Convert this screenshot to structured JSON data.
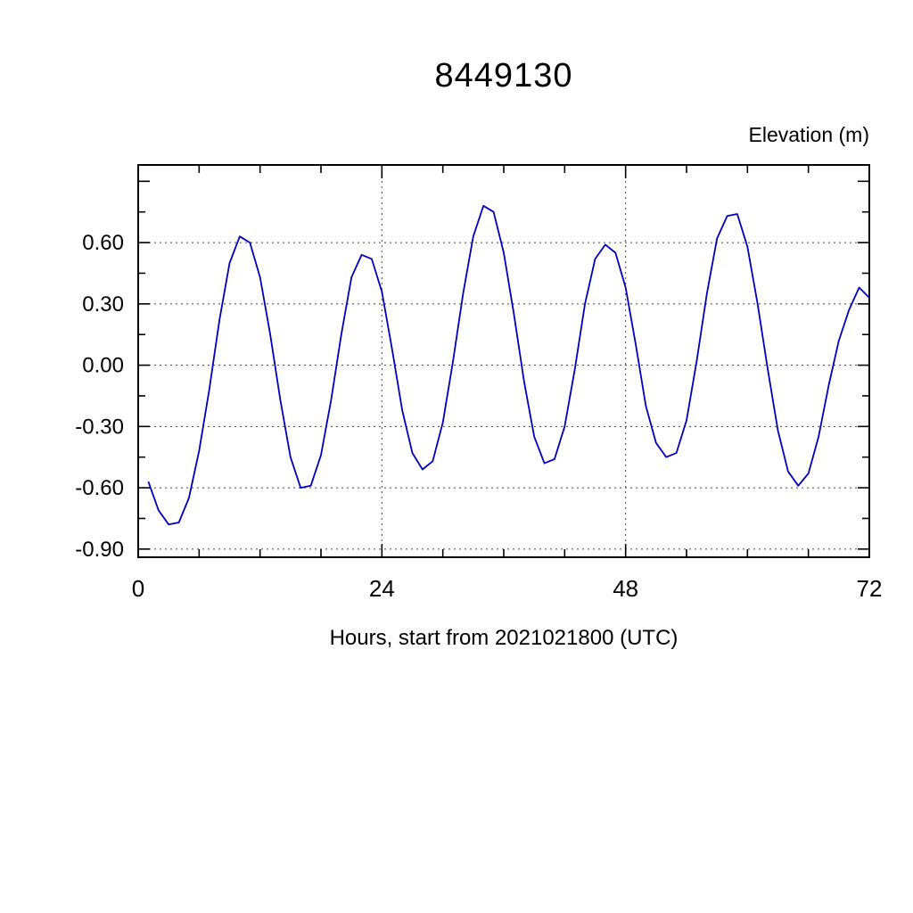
{
  "chart": {
    "title": "8449130",
    "ylabel": "Elevation (m)",
    "xlabel": "Hours, start from 2021021800 (UTC)"
  },
  "chart_data": {
    "type": "line",
    "title": "8449130",
    "xlabel": "Hours, start from 2021021800 (UTC)",
    "ylabel": "Elevation (m)",
    "x_hours": [
      1,
      2,
      3,
      4,
      5,
      6,
      7,
      8,
      9,
      10,
      11,
      12,
      13,
      14,
      15,
      16,
      17,
      18,
      19,
      20,
      21,
      22,
      23,
      24,
      25,
      26,
      27,
      28,
      29,
      30,
      31,
      32,
      33,
      34,
      35,
      36,
      37,
      38,
      39,
      40,
      41,
      42,
      43,
      44,
      45,
      46,
      47,
      48,
      49,
      50,
      51,
      52,
      53,
      54,
      55,
      56,
      57,
      58,
      59,
      60,
      61,
      62,
      63,
      64,
      65,
      66,
      67,
      68,
      69,
      70,
      71,
      72
    ],
    "elevation_m": [
      -0.57,
      -0.71,
      -0.78,
      -0.77,
      -0.65,
      -0.42,
      -0.12,
      0.22,
      0.5,
      0.63,
      0.6,
      0.43,
      0.15,
      -0.17,
      -0.45,
      -0.6,
      -0.59,
      -0.44,
      -0.17,
      0.15,
      0.43,
      0.54,
      0.52,
      0.36,
      0.08,
      -0.22,
      -0.43,
      -0.51,
      -0.47,
      -0.28,
      0.02,
      0.35,
      0.63,
      0.78,
      0.75,
      0.55,
      0.25,
      -0.08,
      -0.35,
      -0.48,
      -0.46,
      -0.3,
      -0.02,
      0.3,
      0.52,
      0.59,
      0.55,
      0.38,
      0.1,
      -0.2,
      -0.38,
      -0.45,
      -0.43,
      -0.27,
      0.02,
      0.35,
      0.62,
      0.73,
      0.74,
      0.58,
      0.3,
      -0.02,
      -0.32,
      -0.52,
      -0.59,
      -0.53,
      -0.35,
      -0.1,
      0.12,
      0.27,
      0.38,
      0.33
    ],
    "xlim": [
      0,
      72
    ],
    "ylim": [
      -0.94,
      0.98
    ],
    "xticks": [
      0,
      24,
      48,
      72
    ],
    "xtick_labels": [
      "0",
      "24",
      "48",
      "72"
    ],
    "xminor_step": 6,
    "yticks": [
      {
        "v": 0.6,
        "label": "0.60"
      },
      {
        "v": 0.3,
        "label": "0.30"
      },
      {
        "v": 0.0,
        "label": "0.00"
      },
      {
        "v": -0.3,
        "label": "-0.30"
      },
      {
        "v": -0.6,
        "label": "-0.60"
      },
      {
        "v": -0.9,
        "label": "-0.90"
      }
    ],
    "yminor_step": 0.15,
    "grid": {
      "x": [
        24,
        48
      ],
      "y": [
        0.6,
        0.3,
        0.0,
        -0.3,
        -0.6,
        -0.9
      ]
    },
    "line_color": "#0000bb",
    "grid_on": true,
    "legend_position": "none"
  }
}
